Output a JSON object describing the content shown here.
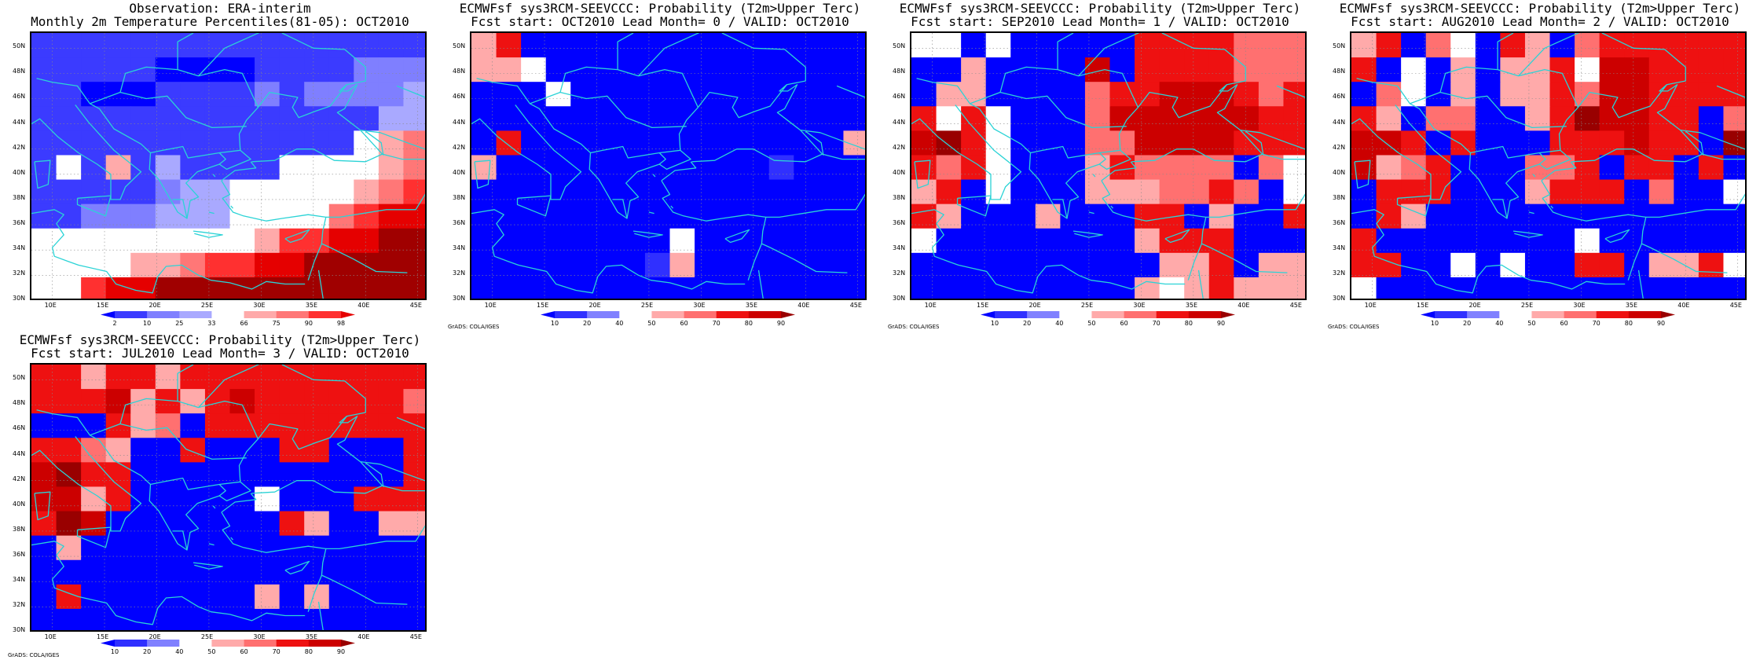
{
  "colors": {
    "coast": "#2bd3d6",
    "obs_scale": [
      "#0000ff",
      "#3b3bff",
      "#7f7fff",
      "#a9a9ff",
      "#ffffff",
      "#ffaaaa",
      "#ff7777",
      "#ff3030",
      "#e50000",
      "#a00000"
    ],
    "prob_scale": [
      "#0000ff",
      "#3030ff",
      "#ffffff",
      "#ffffff",
      "#ffaaaa",
      "#ff7070",
      "#ee1111",
      "#cc0000",
      "#990000",
      "#770000"
    ]
  },
  "map": {
    "lon_labels": [
      "10E",
      "15E",
      "20E",
      "25E",
      "30E",
      "35E",
      "40E",
      "45E"
    ],
    "lat_labels": [
      "50N",
      "48N",
      "46N",
      "44N",
      "42N",
      "40N",
      "38N",
      "36N",
      "34N",
      "32N",
      "30N"
    ]
  },
  "panels": [
    {
      "title_line1": "Observation: ERA-interim",
      "title_line2": "Monthly 2m Temperature Percentiles(81-05): OCT2010",
      "credit": "",
      "scale": "obs",
      "colorbar_ticks": [
        "2",
        "10",
        "25",
        "33",
        "66",
        "75",
        "90",
        "98"
      ],
      "grid": [
        "1111111111111111",
        "1111100001111222",
        "1100011112122223",
        "1111111111111133",
        "1111111111111456",
        "1415131111444456",
        "1111123344444567",
        "1122233344446788",
        "4444444445778899",
        "4444556778899999",
        "4478899999999999"
      ]
    },
    {
      "title_line1": "ECMWFsf sys3RCM-SEEVCCC: Probability (T2m>Upper Terc)",
      "title_line2": "Fcst start: OCT2010   Lead Month= 0 / VALID: OCT2010",
      "credit": "GrADS: COLA/IGES",
      "scale": "prob",
      "colorbar_ticks": [
        "10",
        "20",
        "40",
        "50",
        "60",
        "70",
        "80",
        "90"
      ],
      "grid": [
        "4600000000000000",
        "4420000000000000",
        "0002000000000000",
        "0000000000000000",
        "0600000000000004",
        "4000000000001000",
        "0000000000000000",
        "0000000000000000",
        "0000000020000000",
        "0000000140000000",
        "0000000000000000"
      ]
    },
    {
      "title_line1": "ECMWFsf sys3RCM-SEEVCCC: Probability (T2m>Upper Terc)",
      "title_line2": "Fcst start: SEP2010   Lead Month= 1 / VALID: OCT2010",
      "credit": "GrADS: COLA/IGES",
      "scale": "prob",
      "colorbar_ticks": [
        "10",
        "20",
        "40",
        "50",
        "60",
        "70",
        "80",
        "90"
      ],
      "grid": [
        "2202000006666555",
        "0040000706666555",
        "0440000566777656",
        "6262000577777766",
        "7862000557777666",
        "6562000465555052",
        "4602000444556502",
        "6400040006604006",
        "2000000004666000",
        "0000000000446044",
        "0000000004246444"
      ]
    },
    {
      "title_line1": "ECMWFsf sys3RCM-SEEVCCC: Probability (T2m>Upper Terc)",
      "title_line2": "Fcst start: AUG2010   Lead Month= 2 / VALID: OCT2010",
      "credit": "GrADS: COLA/IGES",
      "scale": "prob",
      "colorbar_ticks": [
        "10",
        "20",
        "40",
        "50",
        "60",
        "70",
        "80",
        "90"
      ],
      "grid": [
        "4605206405666666",
        "6020404462776666",
        "0520404465776666",
        "6405500468776605",
        "7760600066676608",
        "7456000556066060",
        "0666000466605002",
        "0640000000000000",
        "6000000002000000",
        "6600202006604462",
        "2000000000000000"
      ]
    },
    {
      "title_line1": "ECMWFsf sys3RCM-SEEVCCC: Probability (T2m>Upper Terc)",
      "title_line2": "Fcst start: JUL2010   Lead Month= 3 / VALID: OCT2010",
      "credit": "GrADS: COLA/IGES",
      "scale": "prob",
      "colorbar_ticks": [
        "10",
        "20",
        "40",
        "50",
        "60",
        "70",
        "80",
        "90"
      ],
      "grid": [
        "6646646666666666",
        "6667464676666665",
        "0006450666666666",
        "6654006000660006",
        "7866000000000006",
        "7746000002000666",
        "6870000000640044",
        "0400000000000000",
        "0000000000000000",
        "0600000004040000",
        "0000000000000000"
      ]
    }
  ]
}
